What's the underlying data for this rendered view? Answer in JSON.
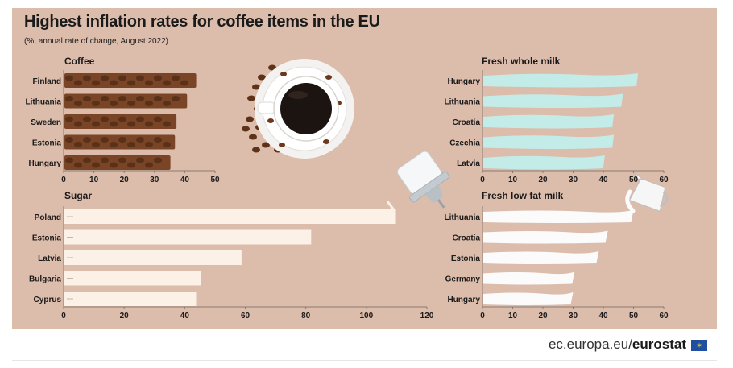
{
  "title": "Highest inflation rates for coffee items in the EU",
  "subtitle": "(%, annual rate of change, August 2022)",
  "footer": {
    "site_prefix": "ec.europa.eu/",
    "site_brand": "eurostat"
  },
  "colors": {
    "background": "#dcbcab",
    "coffee": "#7a4426",
    "sugar": "#fbf1e6",
    "whole_milk": "#c3ece8",
    "low_fat_milk": "#fbfbfb",
    "grid": "#8a7a70"
  },
  "chart_data": [
    {
      "type": "bar",
      "id": "coffee",
      "title": "Coffee",
      "categories": [
        "Finland",
        "Lithuania",
        "Sweden",
        "Estonia",
        "Hungary"
      ],
      "values": [
        43.5,
        40.5,
        37,
        36.5,
        35
      ],
      "xlim": [
        0,
        50
      ],
      "ticks": [
        0,
        10,
        20,
        30,
        40,
        50
      ]
    },
    {
      "type": "bar",
      "id": "sugar",
      "title": "Sugar",
      "categories": [
        "Poland",
        "Estonia",
        "Latvia",
        "Bulgaria",
        "Cyprus"
      ],
      "values": [
        109.5,
        81.5,
        58.5,
        45,
        43.5
      ],
      "xlim": [
        0,
        120
      ],
      "ticks": [
        0,
        20,
        40,
        60,
        80,
        100,
        120
      ]
    },
    {
      "type": "bar",
      "id": "whole_milk",
      "title": "Fresh whole milk",
      "categories": [
        "Hungary",
        "Lithuania",
        "Croatia",
        "Czechia",
        "Latvia"
      ],
      "values": [
        51.5,
        46.5,
        43.5,
        43.5,
        40.5
      ],
      "xlim": [
        0,
        60
      ],
      "ticks": [
        0,
        10,
        20,
        30,
        40,
        50,
        60
      ]
    },
    {
      "type": "bar",
      "id": "low_fat_milk",
      "title": "Fresh low fat milk",
      "categories": [
        "Lithuania",
        "Croatia",
        "Estonia",
        "Germany",
        "Hungary"
      ],
      "values": [
        50,
        41.5,
        38.5,
        30.5,
        30
      ],
      "xlim": [
        0,
        60
      ],
      "ticks": [
        0,
        10,
        20,
        30,
        40,
        50,
        60
      ]
    }
  ]
}
